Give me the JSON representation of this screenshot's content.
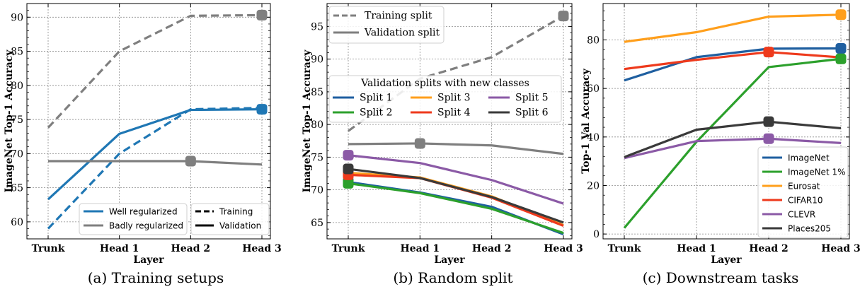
{
  "chart_data": [
    {
      "type": "line",
      "caption": "(a) Training setups",
      "xlabel": "Layer",
      "ylabel": "ImageNet Top-1 Accuracy",
      "categories": [
        "Trunk",
        "Head 1",
        "Head 2",
        "Head 3"
      ],
      "ylim": [
        57.5,
        92
      ],
      "yticks": [
        60,
        65,
        70,
        75,
        80,
        85,
        90
      ],
      "grid": true,
      "series": [
        {
          "group": "Well regularized",
          "split": "Training",
          "color": "#1f77b4",
          "dash": true,
          "values": [
            59,
            70,
            76.5,
            76.7
          ]
        },
        {
          "group": "Well regularized",
          "split": "Validation",
          "color": "#1f77b4",
          "dash": false,
          "values": [
            63.3,
            72.9,
            76.4,
            76.5
          ]
        },
        {
          "group": "Badly regularized",
          "split": "Training",
          "color": "#7f7f7f",
          "dash": true,
          "values": [
            73.8,
            85,
            90.2,
            90.3
          ]
        },
        {
          "group": "Badly regularized",
          "split": "Validation",
          "color": "#7f7f7f",
          "dash": false,
          "values": [
            68.9,
            68.9,
            68.9,
            68.4
          ]
        }
      ],
      "markers": [
        {
          "series": 1,
          "index": 3
        },
        {
          "series": 2,
          "index": 3
        },
        {
          "series": 3,
          "index": 2
        }
      ],
      "legend_groups": {
        "placement": "lower-center",
        "items": [
          {
            "label": "Well regularized",
            "color": "#1f77b4"
          },
          {
            "label": "Badly regularized",
            "color": "#7f7f7f"
          }
        ]
      },
      "legend_styles": {
        "placement": "lower-right",
        "items": [
          {
            "label": "Training",
            "dash": true
          },
          {
            "label": "Validation",
            "dash": false
          }
        ]
      }
    },
    {
      "type": "line",
      "caption": "(b) Random split",
      "xlabel": "Layer",
      "ylabel": "ImageNet Top-1 Accuracy",
      "categories": [
        "Trunk",
        "Head 1",
        "Head 2",
        "Head 3"
      ],
      "ylim": [
        62.5,
        98.5
      ],
      "yticks": [
        65,
        70,
        75,
        80,
        85,
        90,
        95
      ],
      "grid": true,
      "series": [
        {
          "name": "Training split",
          "color": "#7f7f7f",
          "dash": true,
          "values": [
            79,
            87,
            90.3,
            96.6
          ]
        },
        {
          "name": "Validation split",
          "color": "#7f7f7f",
          "dash": false,
          "values": [
            77,
            77.1,
            76.8,
            75.5
          ]
        },
        {
          "name": "Split 1",
          "color": "#1f5fa0",
          "dash": false,
          "values": [
            71.2,
            69.6,
            67.4,
            63.2
          ]
        },
        {
          "name": "Split 2",
          "color": "#2ca02c",
          "dash": false,
          "values": [
            71,
            69.5,
            67.1,
            63.4
          ]
        },
        {
          "name": "Split 3",
          "color": "#ff9f1c",
          "dash": false,
          "values": [
            72.6,
            71.9,
            69,
            64.6
          ]
        },
        {
          "name": "Split 4",
          "color": "#ee3a1c",
          "dash": false,
          "values": [
            72.3,
            71.8,
            68.8,
            64.5
          ]
        },
        {
          "name": "Split 5",
          "color": "#8b5aa6",
          "dash": false,
          "values": [
            75.3,
            74.1,
            71.5,
            67.9
          ]
        },
        {
          "name": "Split 6",
          "color": "#3a3a3a",
          "dash": false,
          "values": [
            73.2,
            71.8,
            68.9,
            65
          ]
        }
      ],
      "markers": [
        {
          "series": 0,
          "index": 3
        },
        {
          "series": 1,
          "index": 1
        },
        {
          "series": 2,
          "index": 0
        },
        {
          "series": 3,
          "index": 0
        },
        {
          "series": 4,
          "index": 0
        },
        {
          "series": 5,
          "index": 0
        },
        {
          "series": 6,
          "index": 0
        },
        {
          "series": 7,
          "index": 0
        }
      ],
      "legend_top": {
        "placement": "top-left",
        "series": [
          0,
          1
        ]
      },
      "legend_splits": {
        "title": "Validation splits with new classes",
        "placement": "center",
        "series": [
          2,
          4,
          6,
          3,
          5,
          7
        ]
      }
    },
    {
      "type": "line",
      "caption": "(c) Downstream tasks",
      "xlabel": "Layer",
      "ylabel": "Top-1 Val Accuracy",
      "categories": [
        "Trunk",
        "Head 1",
        "Head 2",
        "Head 3"
      ],
      "ylim": [
        -2,
        95
      ],
      "yticks": [
        0,
        20,
        40,
        60,
        80
      ],
      "grid": true,
      "series": [
        {
          "name": "ImageNet",
          "color": "#1f5fa0",
          "values": [
            63.3,
            72.9,
            76.4,
            76.5
          ]
        },
        {
          "name": "ImageNet 1%",
          "color": "#2ca02c",
          "values": [
            2.5,
            38,
            68.8,
            72.2
          ]
        },
        {
          "name": "Eurosat",
          "color": "#ff9f1c",
          "values": [
            79.2,
            83.2,
            89.6,
            90.4
          ]
        },
        {
          "name": "CIFAR10",
          "color": "#ee3a1c",
          "values": [
            68,
            71.8,
            75,
            72.8
          ]
        },
        {
          "name": "CLEVR",
          "color": "#8b5aa6",
          "values": [
            31.3,
            38.3,
            39.3,
            37.5
          ]
        },
        {
          "name": "Places205",
          "color": "#3a3a3a",
          "values": [
            31.7,
            43,
            46.3,
            43.6
          ]
        }
      ],
      "markers": [
        {
          "series": 0,
          "index": 3
        },
        {
          "series": 1,
          "index": 3
        },
        {
          "series": 2,
          "index": 3
        },
        {
          "series": 3,
          "index": 2
        },
        {
          "series": 4,
          "index": 2
        },
        {
          "series": 5,
          "index": 2
        }
      ],
      "legend": {
        "placement": "lower-right",
        "series": [
          0,
          1,
          2,
          3,
          4,
          5
        ]
      }
    }
  ]
}
